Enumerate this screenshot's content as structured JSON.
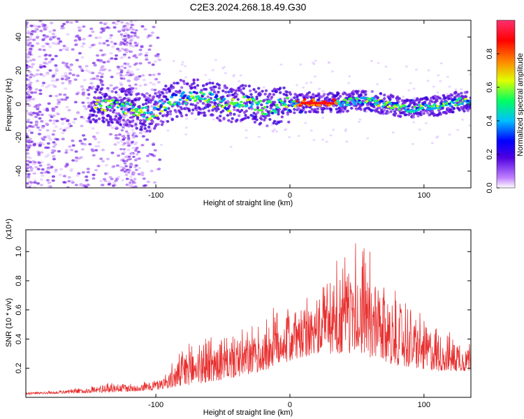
{
  "title": "C2E3.2024.268.18.49.G30",
  "chart_data": [
    {
      "type": "heatmap",
      "xlabel": "Height of straight line (km)",
      "ylabel": "Frequency (Hz)",
      "xlim": [
        -197,
        135
      ],
      "ylim": [
        -50,
        50
      ],
      "x_ticks": [
        -100,
        0,
        100
      ],
      "y_ticks": [
        -40,
        -20,
        0,
        20,
        40
      ],
      "colorbar": {
        "label": "Normalized spectral amplitude",
        "range": [
          0,
          1
        ],
        "ticks": [
          "0.0",
          "0.2",
          "0.4",
          "0.6",
          "0.8"
        ],
        "colors": [
          "#ffffff",
          "#c080ff",
          "#5000e0",
          "#0000ff",
          "#00c0ff",
          "#00ff60",
          "#e0ff00",
          "#ff8000",
          "#ff0000",
          "#ff3070"
        ]
      },
      "center_track": [
        [
          -150,
          0
        ],
        [
          -120,
          -2
        ],
        [
          -105,
          -6
        ],
        [
          -90,
          1
        ],
        [
          -75,
          5
        ],
        [
          -60,
          3
        ],
        [
          -45,
          -1
        ],
        [
          -30,
          2
        ],
        [
          -20,
          -3
        ],
        [
          -10,
          -1
        ],
        [
          0,
          0
        ],
        [
          10,
          1
        ],
        [
          20,
          1
        ],
        [
          30,
          1
        ],
        [
          40,
          1
        ],
        [
          50,
          2
        ],
        [
          60,
          2
        ],
        [
          70,
          0
        ],
        [
          80,
          -1
        ],
        [
          90,
          -3
        ],
        [
          100,
          -2
        ],
        [
          110,
          -1
        ],
        [
          120,
          1
        ],
        [
          135,
          2
        ]
      ]
    },
    {
      "type": "line",
      "xlabel": "Height of straight line (km)",
      "ylabel": "SNR (10 * v/v)",
      "y_multiplier": "(x10⁴)",
      "xlim": [
        -197,
        135
      ],
      "ylim": [
        0,
        1.15
      ],
      "x_ticks": [
        -100,
        0,
        100
      ],
      "y_ticks": [
        "0.2",
        "0.4",
        "0.6",
        "0.8",
        "1.0"
      ],
      "series": [
        {
          "color": "#e83030",
          "envelope": [
            [
              -197,
              0.04
            ],
            [
              -170,
              0.05
            ],
            [
              -150,
              0.08
            ],
            [
              -130,
              0.12
            ],
            [
              -115,
              0.1
            ],
            [
              -100,
              0.14
            ],
            [
              -90,
              0.22
            ],
            [
              -80,
              0.35
            ],
            [
              -70,
              0.45
            ],
            [
              -60,
              0.48
            ],
            [
              -50,
              0.46
            ],
            [
              -40,
              0.47
            ],
            [
              -30,
              0.5
            ],
            [
              -20,
              0.55
            ],
            [
              -10,
              0.7
            ],
            [
              0,
              0.72
            ],
            [
              10,
              0.7
            ],
            [
              20,
              0.76
            ],
            [
              30,
              0.98
            ],
            [
              40,
              0.92
            ],
            [
              50,
              1.05
            ],
            [
              60,
              0.92
            ],
            [
              70,
              0.88
            ],
            [
              80,
              0.76
            ],
            [
              90,
              0.7
            ],
            [
              100,
              0.58
            ],
            [
              110,
              0.52
            ],
            [
              120,
              0.46
            ],
            [
              135,
              0.42
            ]
          ],
          "baseline": [
            [
              -197,
              0.02
            ],
            [
              -150,
              0.03
            ],
            [
              -120,
              0.04
            ],
            [
              -100,
              0.05
            ],
            [
              -80,
              0.08
            ],
            [
              -50,
              0.12
            ],
            [
              -20,
              0.18
            ],
            [
              0,
              0.25
            ],
            [
              20,
              0.3
            ],
            [
              50,
              0.3
            ],
            [
              80,
              0.22
            ],
            [
              110,
              0.18
            ],
            [
              135,
              0.18
            ]
          ]
        }
      ]
    }
  ]
}
